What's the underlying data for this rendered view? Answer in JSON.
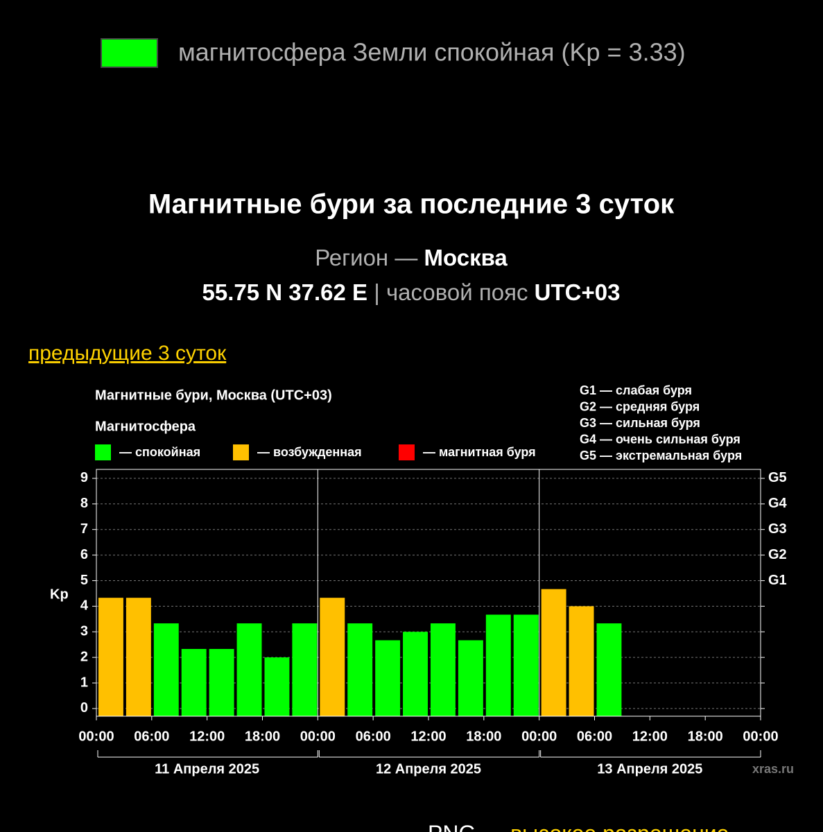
{
  "header": {
    "legend_text": "магнитосфера Земли спокойная (Kp = 3.33)",
    "legend_color": "#00ff00",
    "title": "Магнитные бури за последние 3 суток",
    "region_label": "Регион —",
    "region": "Москва",
    "coords": "55.75 N 37.62 E",
    "separator": "|",
    "tz_label": "часовой пояс",
    "tz": "UTC+03",
    "prev_link": "предыдущие 3 суток"
  },
  "chart_data": {
    "type": "bar",
    "title": "Магнитные бури, Москва (UTC+03)",
    "subtitle": "Магнитосфера",
    "legend": [
      {
        "name": "— спокойная",
        "color": "#00ff00"
      },
      {
        "name": "— возбужденная",
        "color": "#ffc000"
      },
      {
        "name": "— магнитная буря",
        "color": "#ff0000"
      }
    ],
    "g_legend": [
      "G1 — слабая буря",
      "G2 — средняя буря",
      "G3 — сильная буря",
      "G4 — очень сильная буря",
      "G5 — экстремальная буря"
    ],
    "ylabel": "Kp",
    "x": [
      0,
      3,
      6,
      9,
      12,
      15,
      18,
      21,
      24,
      27,
      30,
      33,
      36,
      39,
      42,
      45,
      48,
      51,
      54
    ],
    "values": [
      4.33,
      4.33,
      3.33,
      2.33,
      2.33,
      3.33,
      2.0,
      3.33,
      4.33,
      3.33,
      2.67,
      3.0,
      3.33,
      2.67,
      3.67,
      3.67,
      4.67,
      4.0,
      3.33
    ],
    "colors": [
      "#ffc000",
      "#ffc000",
      "#00ff00",
      "#00ff00",
      "#00ff00",
      "#00ff00",
      "#00ff00",
      "#00ff00",
      "#ffc000",
      "#00ff00",
      "#00ff00",
      "#00ff00",
      "#00ff00",
      "#00ff00",
      "#00ff00",
      "#00ff00",
      "#ffc000",
      "#ffc000",
      "#00ff00"
    ],
    "xlim": [
      0,
      72
    ],
    "ylim": [
      -0.3,
      9.35
    ],
    "yticks": [
      0,
      1,
      2,
      3,
      4,
      5,
      6,
      7,
      8,
      9
    ],
    "y2ticks": [
      {
        "value": 5,
        "label": "G1"
      },
      {
        "value": 6,
        "label": "G2"
      },
      {
        "value": 7,
        "label": "G3"
      },
      {
        "value": 8,
        "label": "G4"
      },
      {
        "value": 9,
        "label": "G5"
      }
    ],
    "xticks": [
      {
        "value": 0,
        "label": "00:00"
      },
      {
        "value": 6,
        "label": "06:00"
      },
      {
        "value": 12,
        "label": "12:00"
      },
      {
        "value": 18,
        "label": "18:00"
      },
      {
        "value": 24,
        "label": "00:00"
      },
      {
        "value": 30,
        "label": "06:00"
      },
      {
        "value": 36,
        "label": "12:00"
      },
      {
        "value": 42,
        "label": "18:00"
      },
      {
        "value": 48,
        "label": "00:00"
      },
      {
        "value": 54,
        "label": "06:00"
      },
      {
        "value": 60,
        "label": "12:00"
      },
      {
        "value": 66,
        "label": "18:00"
      },
      {
        "value": 72,
        "label": "00:00"
      }
    ],
    "days": [
      {
        "label": "11 Апреля 2025",
        "range": [
          0,
          24
        ]
      },
      {
        "label": "12 Апреля 2025",
        "range": [
          24,
          48
        ]
      },
      {
        "label": "13 Апреля 2025",
        "range": [
          48,
          72
        ]
      }
    ],
    "source": "xras.ru",
    "grid": true
  },
  "footer": {
    "format": "PNG",
    "dash": "—",
    "link": "высокое разрешение"
  }
}
